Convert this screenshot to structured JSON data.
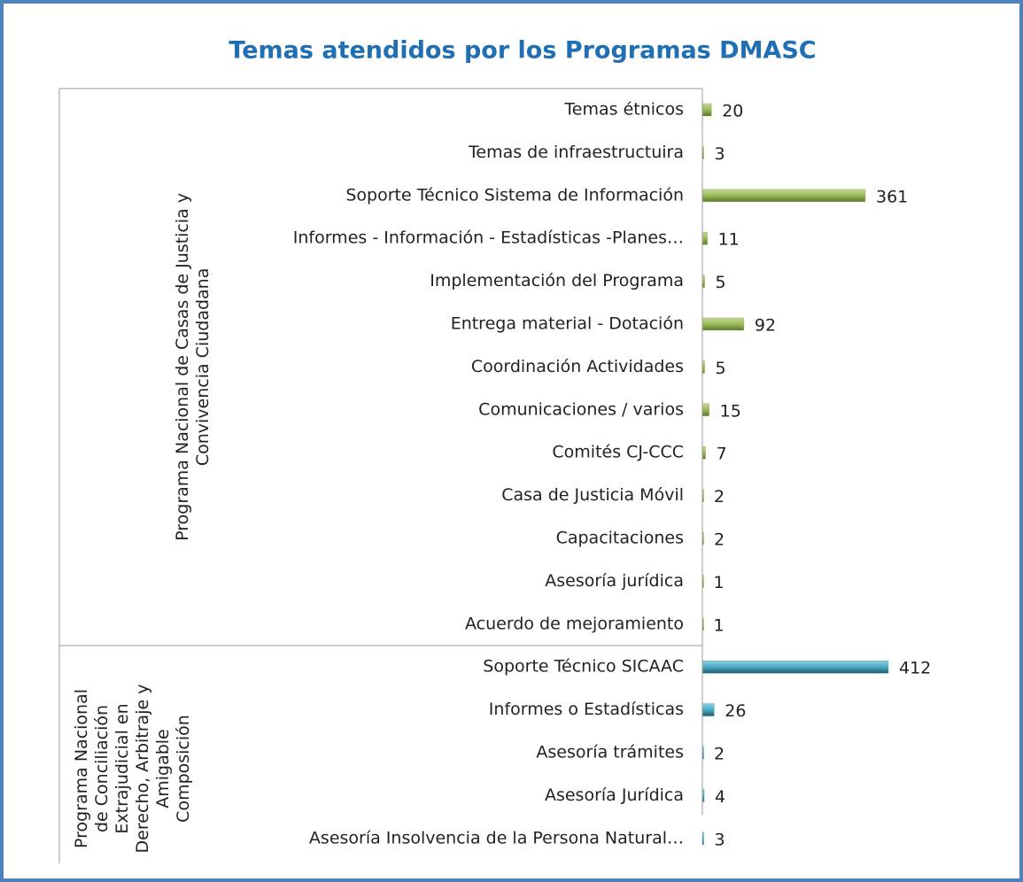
{
  "chart_data": {
    "type": "bar",
    "orientation": "horizontal",
    "title": "Temas atendidos por los Programas DMASC",
    "groups": [
      {
        "label_lines": [
          "Programa Nacional de Casas de Justicia y",
          "Convivencia Ciudadana"
        ],
        "color": "#9bbb59",
        "categories": [
          "Temas étnicos",
          "Temas de infraestructuira",
          "Soporte Técnico  Sistema de Información",
          "Informes - Información - Estadísticas -Planes…",
          "Implementación del Programa",
          "Entrega  material - Dotación",
          "Coordinación Actividades",
          "Comunicaciones / varios",
          "Comités CJ-CCC",
          "Casa de Justicia Móvil",
          "Capacitaciones",
          "Asesoría jurídica",
          "Acuerdo de mejoramiento"
        ],
        "values": [
          20,
          3,
          361,
          11,
          5,
          92,
          5,
          15,
          7,
          2,
          2,
          1,
          1
        ]
      },
      {
        "label_lines": [
          "Programa Nacional",
          "de Conciliación",
          "Extrajudicial en",
          "Derecho, Arbitraje y",
          "Amigable",
          "Composición"
        ],
        "color": "#4bacc6",
        "categories": [
          "Soporte Técnico SICAAC",
          "Informes o Estadísticas",
          "Asesoría trámites",
          "Asesoría Jurídica",
          "Asesoría Insolvencia de la Persona Natural…"
        ],
        "values": [
          412,
          26,
          2,
          4,
          3
        ]
      }
    ]
  }
}
